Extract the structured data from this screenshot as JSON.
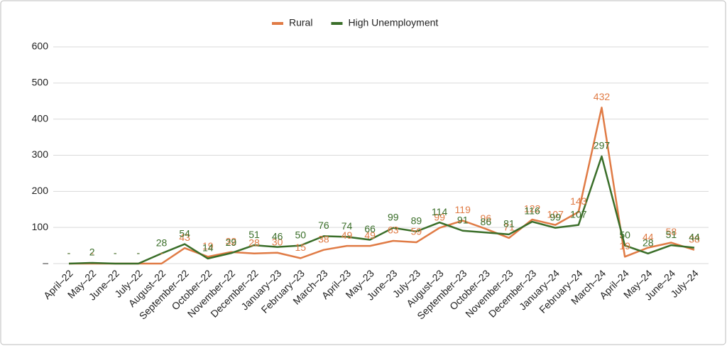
{
  "chart_data": {
    "type": "line",
    "categories": [
      "April–22",
      "May–22",
      "June–22",
      "July–22",
      "August–22",
      "September–22",
      "October–22",
      "November–22",
      "December–22",
      "January–23",
      "February–23",
      "March–23",
      "April–23",
      "May–23",
      "June–23",
      "July–23",
      "August–23",
      "September–23",
      "October–23",
      "November–23",
      "December–23",
      "January–24",
      "February–24",
      "March–24",
      "April–24",
      "May–24",
      "June–24",
      "July–24"
    ],
    "series": [
      {
        "name": "Rural",
        "color": "#e07b45",
        "values": [
          0,
          0,
          0,
          0,
          0,
          43,
          19,
          32,
          28,
          30,
          15,
          38,
          49,
          49,
          63,
          59,
          99,
          119,
          96,
          71,
          122,
          107,
          143,
          432,
          19,
          44,
          58,
          38
        ],
        "value_labels": [
          "-",
          "-",
          "-",
          "-",
          "-",
          "43",
          "19",
          "32",
          "28",
          "30",
          "15",
          "38",
          "49",
          "49",
          "63",
          "59",
          "99",
          "119",
          "96",
          "71",
          "122",
          "107",
          "143",
          "432",
          "19",
          "44",
          "58",
          "38"
        ]
      },
      {
        "name": "High Unemployment",
        "color": "#3a6e29",
        "values": [
          0,
          2,
          0,
          0,
          28,
          54,
          14,
          29,
          51,
          46,
          50,
          76,
          74,
          66,
          99,
          89,
          114,
          91,
          86,
          81,
          116,
          99,
          107,
          297,
          50,
          28,
          51,
          44
        ],
        "value_labels": [
          "-",
          "2",
          "-",
          "-",
          "28",
          "54",
          "14",
          "29",
          "51",
          "46",
          "50",
          "76",
          "74",
          "66",
          "99",
          "89",
          "114",
          "91",
          "86",
          "81",
          "116",
          "99",
          "107",
          "297",
          "50",
          "28",
          "51",
          "44"
        ]
      }
    ],
    "ylim": [
      0,
      600
    ],
    "yticks": [
      {
        "value": 0,
        "label": "–"
      },
      100,
      200,
      300,
      400,
      500,
      600
    ],
    "grid": true,
    "legend": "top"
  }
}
